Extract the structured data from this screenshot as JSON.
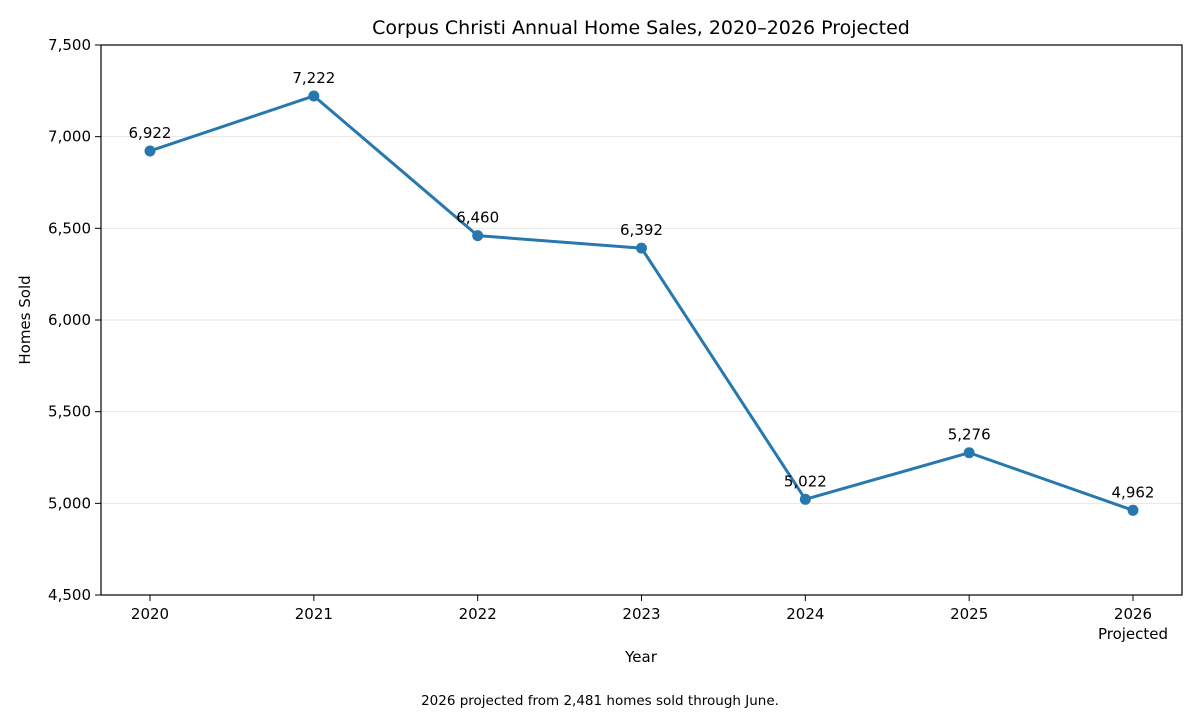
{
  "chart_data": {
    "type": "line",
    "title": "Corpus Christi Annual Home Sales, 2020–2026 Projected",
    "xlabel": "Year",
    "ylabel": "Homes Sold",
    "categories": [
      "2020",
      "2021",
      "2022",
      "2023",
      "2024",
      "2025",
      "2026"
    ],
    "category_sublabels": [
      "",
      "",
      "",
      "",
      "",
      "",
      "Projected"
    ],
    "values": [
      6922,
      7222,
      6460,
      6392,
      5022,
      5276,
      4962
    ],
    "data_labels": [
      "6,922",
      "7,222",
      "6,460",
      "6,392",
      "5,022",
      "5,276",
      "4,962"
    ],
    "ylim": [
      4500,
      7500
    ],
    "yticks": [
      4500,
      5000,
      5500,
      6000,
      6500,
      7000,
      7500
    ],
    "ytick_labels": [
      "4,500",
      "5,000",
      "5,500",
      "6,000",
      "6,500",
      "7,000",
      "7,500"
    ],
    "grid": "horizontal",
    "line_color": "#2878b0",
    "footnote": "2026 projected from 2,481 homes sold through June."
  }
}
